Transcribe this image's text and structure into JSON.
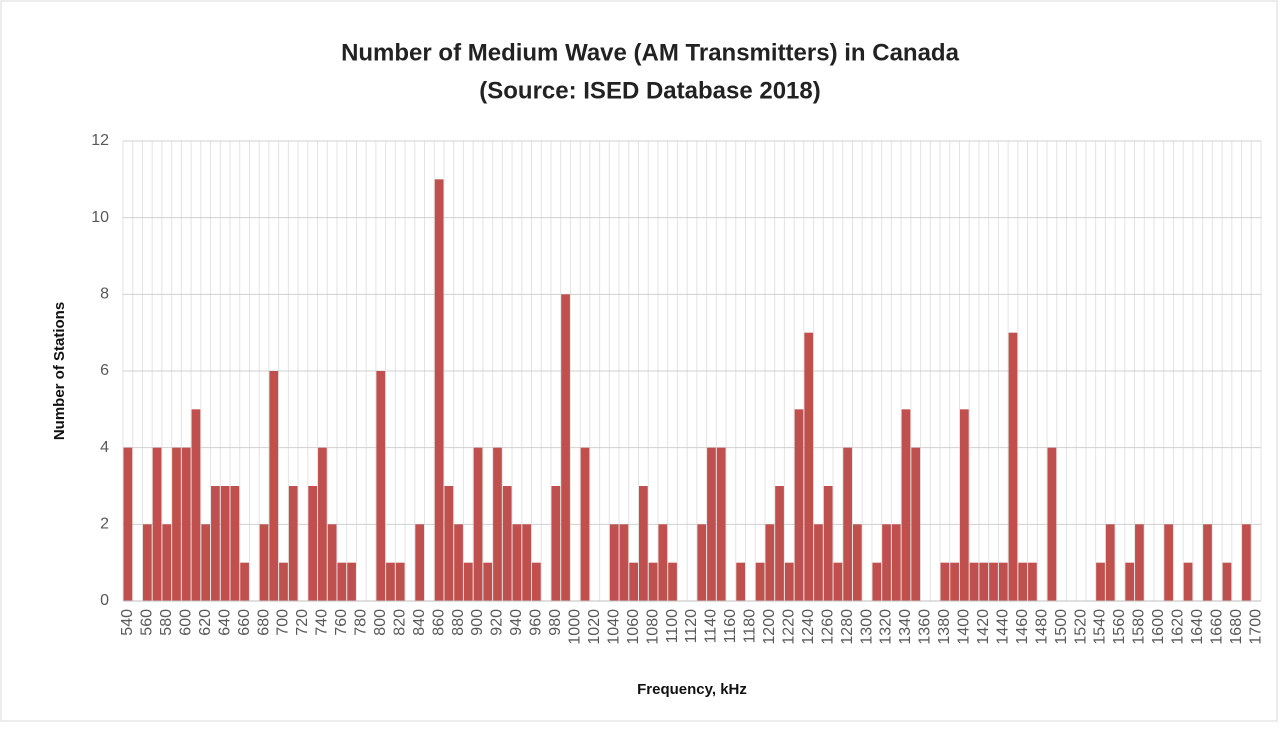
{
  "chart_data": {
    "type": "bar",
    "title": "Number of Medium Wave (AM Transmitters) in Canada",
    "subtitle": "(Source: ISED Database 2018)",
    "x_label": "Frequency, kHz",
    "y_label": "Number of Stations",
    "color": "#c0504d",
    "categories": [
      "540",
      null,
      "560",
      null,
      "580",
      null,
      "600",
      null,
      "620",
      null,
      "640",
      null,
      "660",
      null,
      "680",
      null,
      "700",
      null,
      "720",
      null,
      "740",
      null,
      "760",
      null,
      "780",
      null,
      "800",
      null,
      "820",
      null,
      "840",
      null,
      "860",
      null,
      "880",
      null,
      "900",
      null,
      "920",
      null,
      "940",
      null,
      "960",
      null,
      "980",
      null,
      "1000",
      null,
      "1020",
      null,
      "1040",
      null,
      "1060",
      null,
      "1080",
      null,
      "1100",
      null,
      "1120",
      null,
      "1140",
      null,
      "1160",
      null,
      "1180",
      null,
      "1200",
      null,
      "1220",
      null,
      "1240",
      null,
      "1260",
      null,
      "1280",
      null,
      "1300",
      null,
      "1320",
      null,
      "1340",
      null,
      "1360",
      null,
      "1380",
      null,
      "1400",
      null,
      "1420",
      null,
      "1440",
      null,
      "1460",
      null,
      "1480",
      null,
      "1500",
      null,
      "1520",
      null,
      "1540",
      null,
      "1560",
      null,
      "1580",
      null,
      "1600",
      null,
      "1620",
      null,
      "1640",
      null,
      "1660",
      null,
      "1680",
      null,
      "1700"
    ],
    "values": [
      4,
      0,
      2,
      4,
      2,
      4,
      4,
      5,
      2,
      3,
      3,
      3,
      1,
      0,
      2,
      6,
      1,
      3,
      0,
      3,
      4,
      2,
      1,
      1,
      0,
      0,
      6,
      1,
      1,
      0,
      2,
      0,
      11,
      3,
      2,
      1,
      4,
      1,
      4,
      3,
      2,
      2,
      1,
      0,
      3,
      8,
      0,
      4,
      0,
      0,
      2,
      2,
      1,
      3,
      1,
      2,
      1,
      0,
      0,
      2,
      4,
      4,
      0,
      1,
      0,
      1,
      2,
      3,
      1,
      5,
      7,
      2,
      3,
      1,
      4,
      2,
      0,
      1,
      2,
      2,
      5,
      4,
      0,
      0,
      1,
      1,
      5,
      1,
      1,
      1,
      1,
      7,
      1,
      1,
      0,
      4,
      0,
      0,
      0,
      0,
      1,
      2,
      0,
      1,
      2,
      0,
      0,
      2,
      0,
      1,
      0,
      2,
      0,
      1,
      0,
      2,
      0
    ],
    "ylim": [
      0,
      12
    ],
    "yticks": [
      0,
      2,
      4,
      6,
      8,
      10,
      12
    ],
    "grid": true
  }
}
